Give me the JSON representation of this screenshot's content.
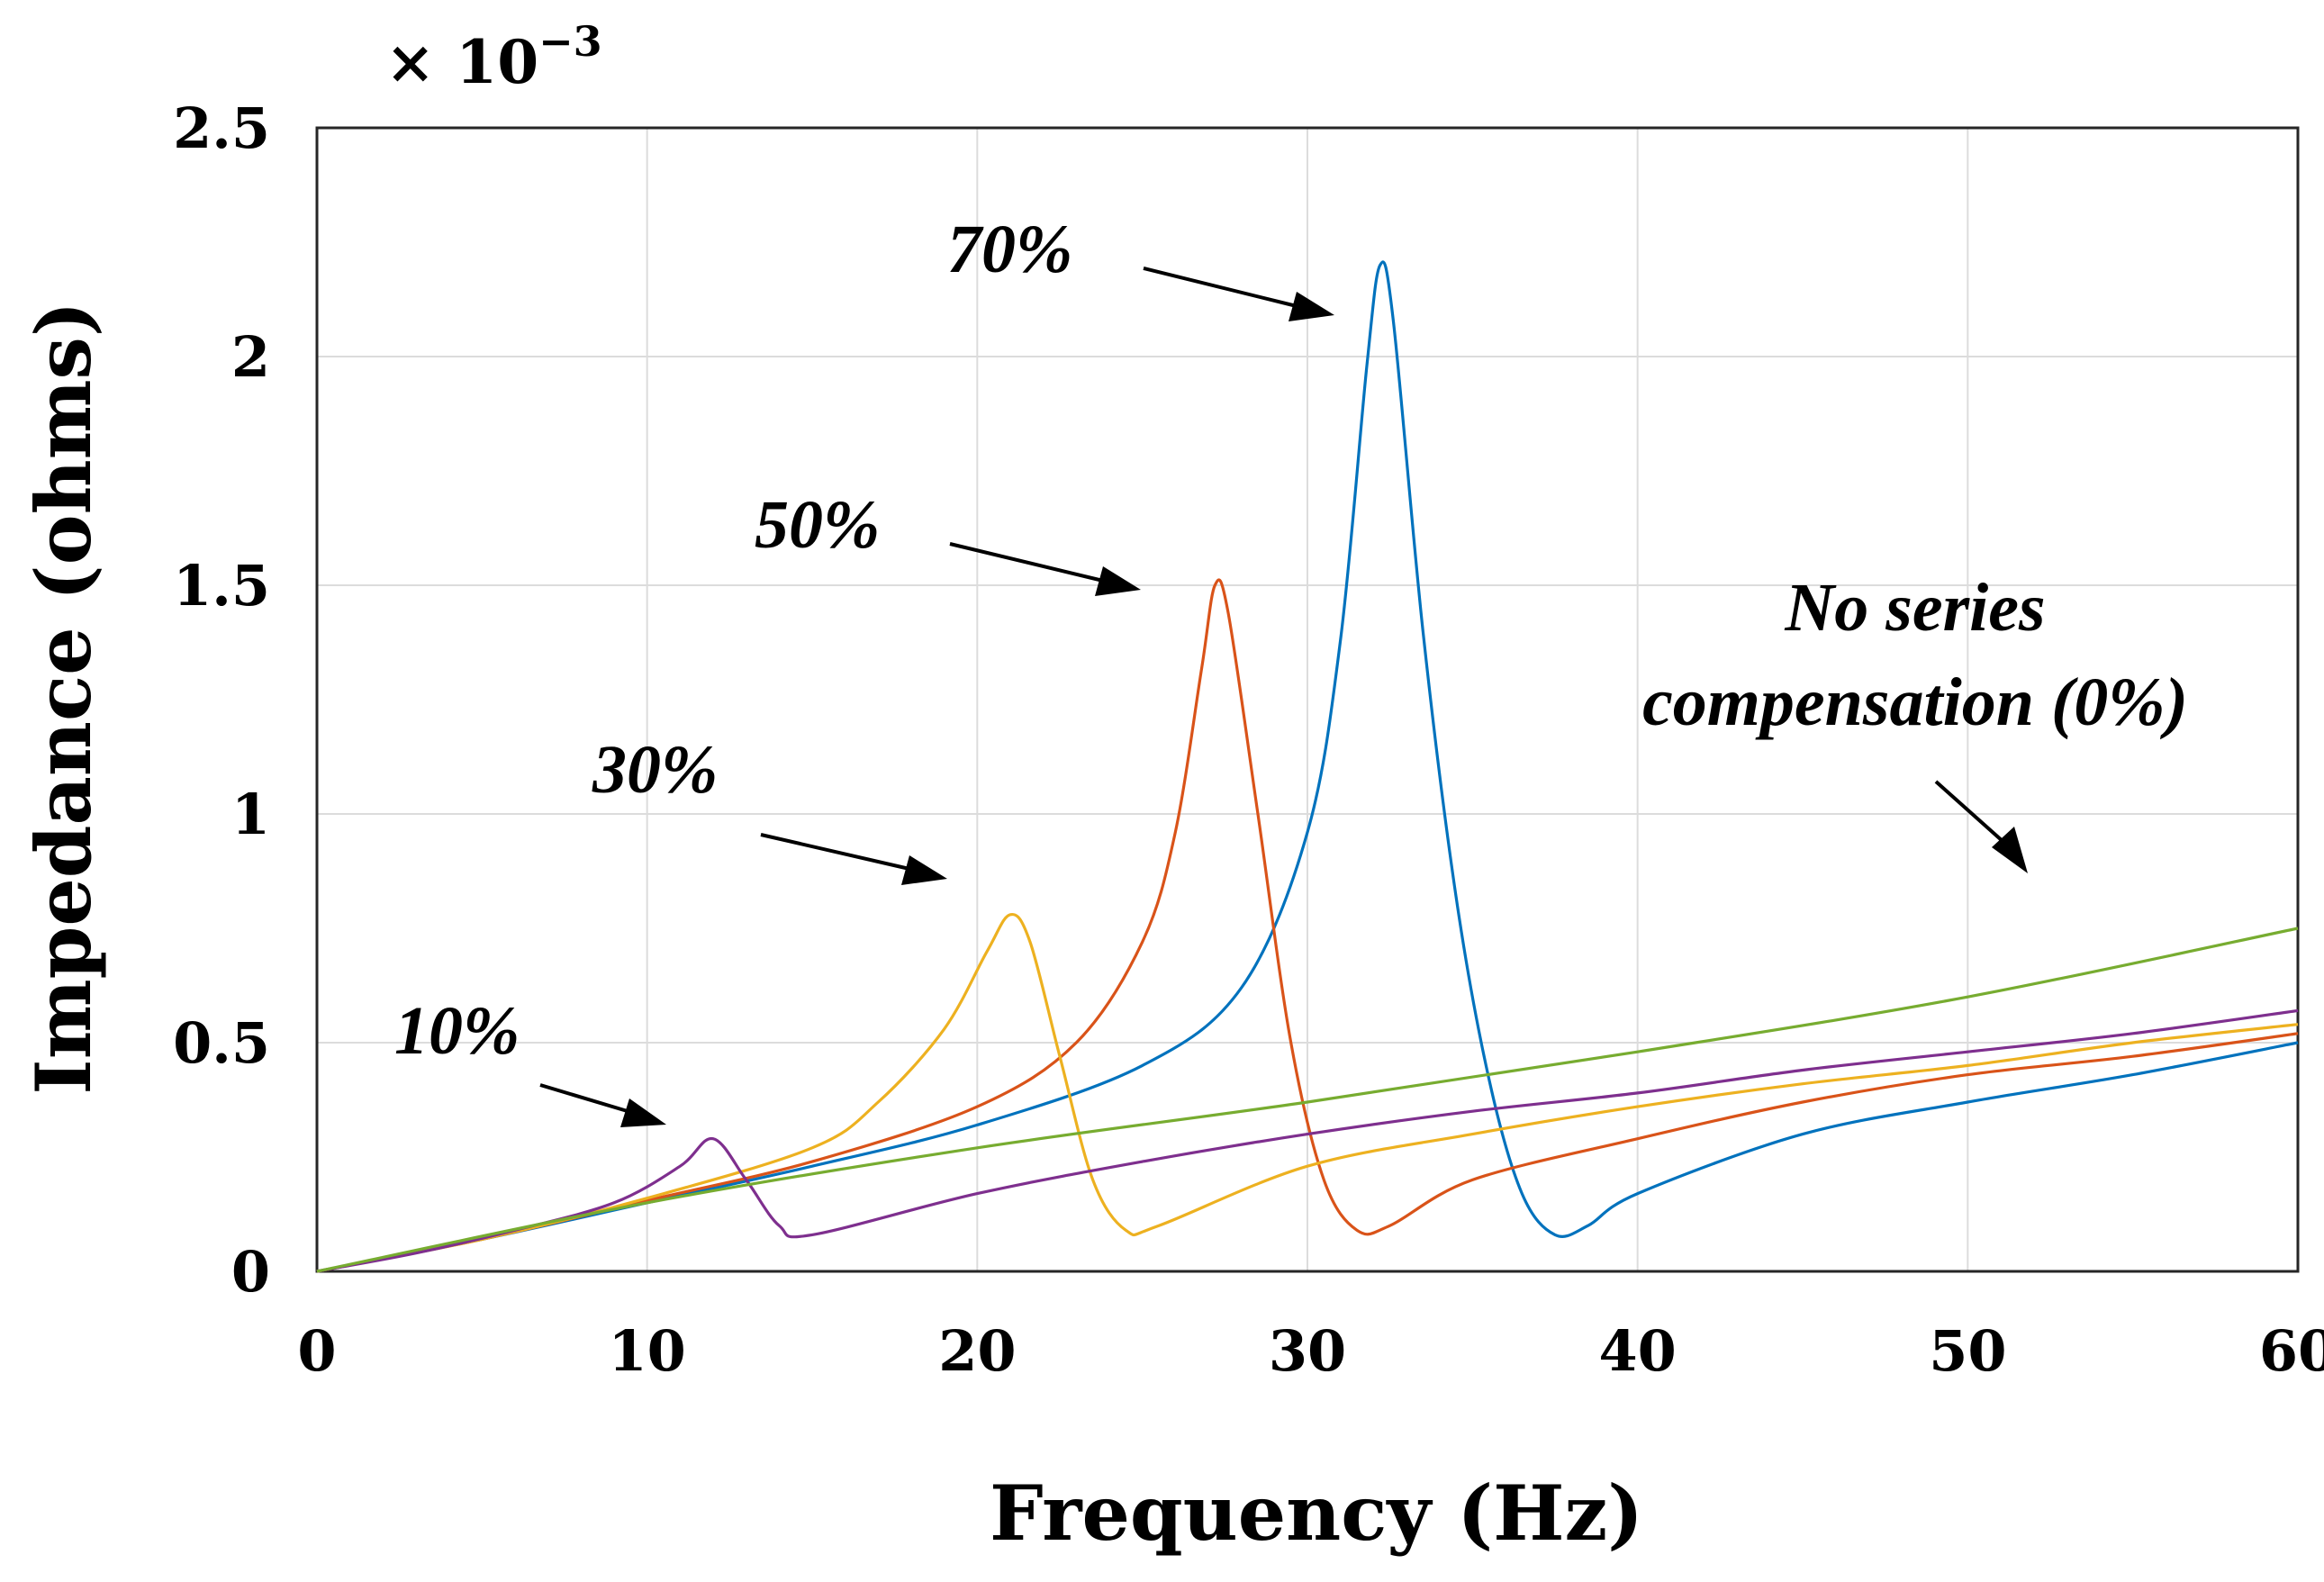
{
  "chart_data": {
    "type": "line",
    "title": "",
    "xlabel": "Frequency (Hz)",
    "ylabel": "Impedance (ohms)",
    "y_multiplier_text": "× 10",
    "y_multiplier_exponent": "−3",
    "xlim": [
      0,
      60
    ],
    "ylim": [
      0,
      2.5
    ],
    "grid": true,
    "x_ticks": [
      0,
      10,
      20,
      30,
      40,
      50,
      60
    ],
    "x_tick_labels": [
      "0",
      "10",
      "20",
      "30",
      "40",
      "50",
      "60"
    ],
    "y_ticks": [
      0,
      0.5,
      1,
      1.5,
      2,
      2.5
    ],
    "y_tick_labels": [
      "0",
      "0.5",
      "1",
      "1.5",
      "2",
      "2.5"
    ],
    "series": [
      {
        "name": "70%",
        "color": "#0072BD",
        "resonance_hz": 32.2,
        "peak_value": 2.2,
        "points": [
          [
            0,
            0
          ],
          [
            5,
            0.07
          ],
          [
            10,
            0.15
          ],
          [
            15,
            0.23
          ],
          [
            20,
            0.32
          ],
          [
            25,
            0.45
          ],
          [
            28,
            0.62
          ],
          [
            30,
            0.96
          ],
          [
            31,
            1.38
          ],
          [
            31.8,
            1.98
          ],
          [
            32.2,
            2.2
          ],
          [
            32.6,
            2.08
          ],
          [
            33.5,
            1.4
          ],
          [
            34.5,
            0.82
          ],
          [
            35.5,
            0.42
          ],
          [
            36.5,
            0.17
          ],
          [
            37.5,
            0.08
          ],
          [
            38.5,
            0.1
          ],
          [
            40,
            0.17
          ],
          [
            45,
            0.3
          ],
          [
            50,
            0.37
          ],
          [
            55,
            0.43
          ],
          [
            60,
            0.5
          ]
        ]
      },
      {
        "name": "50%",
        "color": "#D95319",
        "resonance_hz": 27.2,
        "peak_value": 1.5,
        "points": [
          [
            0,
            0
          ],
          [
            5,
            0.07
          ],
          [
            10,
            0.155
          ],
          [
            15,
            0.24
          ],
          [
            20,
            0.36
          ],
          [
            23,
            0.5
          ],
          [
            25,
            0.72
          ],
          [
            26,
            0.96
          ],
          [
            26.8,
            1.32
          ],
          [
            27.2,
            1.5
          ],
          [
            27.6,
            1.44
          ],
          [
            28.5,
            1.0
          ],
          [
            29.5,
            0.5
          ],
          [
            30.5,
            0.2
          ],
          [
            31.5,
            0.09
          ],
          [
            32.5,
            0.1
          ],
          [
            35,
            0.2
          ],
          [
            40,
            0.29
          ],
          [
            45,
            0.37
          ],
          [
            50,
            0.43
          ],
          [
            55,
            0.47
          ],
          [
            60,
            0.52
          ]
        ]
      },
      {
        "name": "30%",
        "color": "#EDB120",
        "resonance_hz": 21.0,
        "peak_value": 0.78,
        "points": [
          [
            0,
            0
          ],
          [
            5,
            0.07
          ],
          [
            10,
            0.16
          ],
          [
            15,
            0.27
          ],
          [
            17,
            0.37
          ],
          [
            19,
            0.53
          ],
          [
            20.3,
            0.7
          ],
          [
            21,
            0.78
          ],
          [
            21.6,
            0.72
          ],
          [
            22.5,
            0.47
          ],
          [
            23.5,
            0.2
          ],
          [
            24.5,
            0.09
          ],
          [
            25.5,
            0.1
          ],
          [
            30,
            0.23
          ],
          [
            35,
            0.3
          ],
          [
            40,
            0.36
          ],
          [
            45,
            0.41
          ],
          [
            50,
            0.45
          ],
          [
            55,
            0.5
          ],
          [
            60,
            0.54
          ]
        ]
      },
      {
        "name": "10%",
        "color": "#7E2F8E",
        "resonance_hz": 12.0,
        "peak_value": 0.29,
        "points": [
          [
            0,
            0
          ],
          [
            3,
            0.04
          ],
          [
            6,
            0.09
          ],
          [
            9,
            0.15
          ],
          [
            11,
            0.23
          ],
          [
            12,
            0.29
          ],
          [
            13,
            0.2
          ],
          [
            14,
            0.1
          ],
          [
            15,
            0.08
          ],
          [
            20,
            0.17
          ],
          [
            25,
            0.24
          ],
          [
            30,
            0.3
          ],
          [
            35,
            0.35
          ],
          [
            40,
            0.39
          ],
          [
            45,
            0.44
          ],
          [
            50,
            0.48
          ],
          [
            55,
            0.52
          ],
          [
            60,
            0.57
          ]
        ]
      },
      {
        "name": "No series compensation (0%)",
        "color": "#77AC30",
        "resonance_hz": null,
        "peak_value": null,
        "points": [
          [
            0,
            0
          ],
          [
            10,
            0.15
          ],
          [
            20,
            0.27
          ],
          [
            30,
            0.37
          ],
          [
            40,
            0.48
          ],
          [
            50,
            0.6
          ],
          [
            60,
            0.75
          ]
        ]
      }
    ],
    "annotations": [
      {
        "text": "70%",
        "points_to": [
          30.9,
          1.68
        ]
      },
      {
        "text": "50%",
        "points_to": [
          25.3,
          1.19
        ]
      },
      {
        "text": "30%",
        "points_to": [
          19.2,
          0.71
        ]
      },
      {
        "text": "10%",
        "points_to": [
          10.3,
          0.25
        ]
      },
      {
        "text_lines": [
          "No series",
          "compensation (0%)"
        ],
        "points_to": [
          52.5,
          0.69
        ]
      }
    ]
  }
}
